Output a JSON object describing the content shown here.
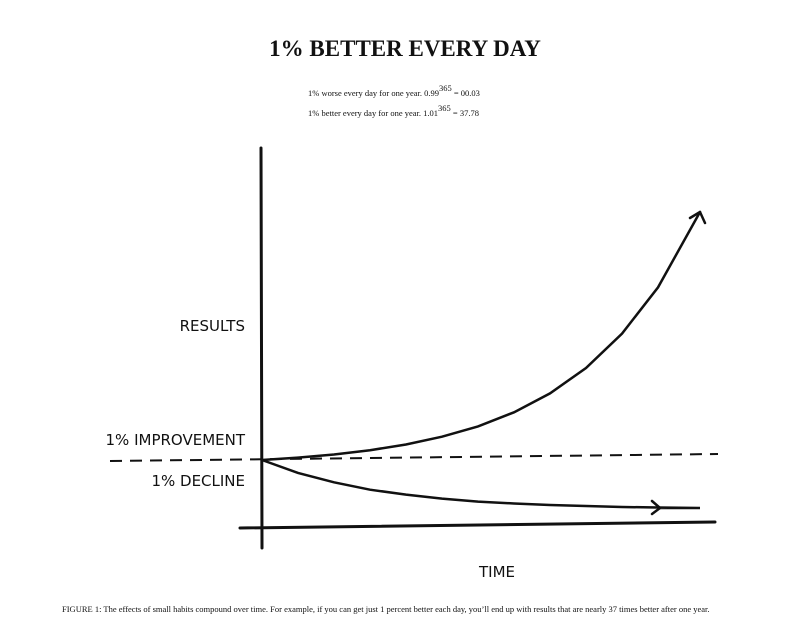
{
  "page": {
    "title": "1% BETTER EVERY DAY",
    "formulas": [
      {
        "prefix": "1% worse every day for one year. 0.99",
        "exponent": "365",
        "suffix": " = 00.03"
      },
      {
        "prefix": "1% better every day for one year. 1.01",
        "exponent": "365",
        "suffix": " = 37.78"
      }
    ],
    "caption": "FIGURE 1: The effects of small habits compound over time. For example, if you can get just 1 percent better each day, you’ll end up with results that are nearly 37 times better after one year."
  },
  "chart_data": {
    "type": "line",
    "title": "1% BETTER EVERY DAY",
    "xlabel": "TIME",
    "ylabel": "RESULTS",
    "x_unit": "days",
    "xlim": [
      0,
      365
    ],
    "ylim": [
      0,
      40
    ],
    "baseline": 1,
    "grid": false,
    "series": [
      {
        "name": "1% IMPROVEMENT",
        "x": [
          0,
          30,
          60,
          90,
          120,
          150,
          180,
          210,
          240,
          270,
          300,
          330,
          365
        ],
        "values": [
          1.0,
          1.35,
          1.82,
          2.45,
          3.3,
          4.45,
          5.99,
          8.07,
          10.87,
          14.65,
          19.74,
          26.6,
          37.78
        ]
      },
      {
        "name": "1% DECLINE",
        "x": [
          0,
          30,
          60,
          90,
          120,
          150,
          180,
          210,
          240,
          270,
          300,
          330,
          365
        ],
        "values": [
          1.0,
          0.74,
          0.55,
          0.4,
          0.3,
          0.22,
          0.16,
          0.12,
          0.09,
          0.07,
          0.05,
          0.04,
          0.03
        ]
      }
    ],
    "annotations": [
      "RESULTS",
      "1% IMPROVEMENT",
      "1% DECLINE",
      "TIME"
    ],
    "colors": {
      "ink": "#111111"
    }
  }
}
